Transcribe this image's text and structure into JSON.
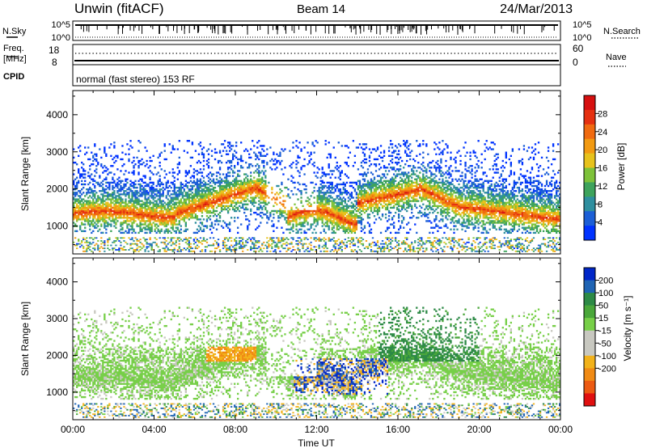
{
  "header": {
    "title": "Unwin (fitACF)",
    "beam": "Beam 14",
    "date": "24/Mar/2013"
  },
  "top_panels": {
    "nsky_label": "N.Sky",
    "nsky_ticks": [
      "10^5",
      "10^0"
    ],
    "nsearch_label": "N.Search",
    "nsearch_ticks": [
      "10^5",
      "10^0"
    ],
    "freq_label": "Freq.",
    "freq_unit": "[MHz]",
    "freq_ticks": [
      "18",
      "8"
    ],
    "nave_label": "Nave",
    "nave_ticks": [
      "60",
      "0"
    ],
    "cpid_label": "CPID",
    "cpid_text": "normal (fast stereo) 153 RF"
  },
  "chart_data": [
    {
      "type": "heatmap",
      "name": "power",
      "ylabel": "Slant Range [km]",
      "yticks": [
        1000,
        2000,
        3000,
        4000
      ],
      "ylim": [
        250,
        4650
      ],
      "xlim": [
        0,
        24
      ],
      "colorbar": {
        "label": "Power [dB]",
        "ticks": [
          4,
          8,
          12,
          16,
          20,
          24,
          28
        ],
        "range": [
          0,
          32
        ],
        "colors": [
          "#0033ff",
          "#1c5fd6",
          "#2f8f9f",
          "#3ea35c",
          "#7ec23a",
          "#e7c21c",
          "#f29a12",
          "#f06a10",
          "#e53010",
          "#d61010"
        ]
      }
    },
    {
      "type": "heatmap",
      "name": "velocity",
      "ylabel": "Slant Range [km]",
      "yticks": [
        1000,
        2000,
        3000,
        4000
      ],
      "ylim": [
        250,
        4650
      ],
      "xlim": [
        0,
        24
      ],
      "xticks": [
        "00:00",
        "04:00",
        "08:00",
        "12:00",
        "16:00",
        "20:00",
        "00:00"
      ],
      "xlabel": "Time UT",
      "colorbar": {
        "label": "Velocity [m s⁻¹]",
        "ticks": [
          "200",
          "100",
          "50",
          "15",
          "-15",
          "-50",
          "-100",
          "-200"
        ],
        "colors": [
          "#0026c8",
          "#1f64b4",
          "#2d8a46",
          "#4aa73a",
          "#77cf48",
          "#c8c8c0",
          "#c8c8c0",
          "#f2b21a",
          "#f08a14",
          "#ec5a12",
          "#e01010"
        ]
      }
    }
  ]
}
